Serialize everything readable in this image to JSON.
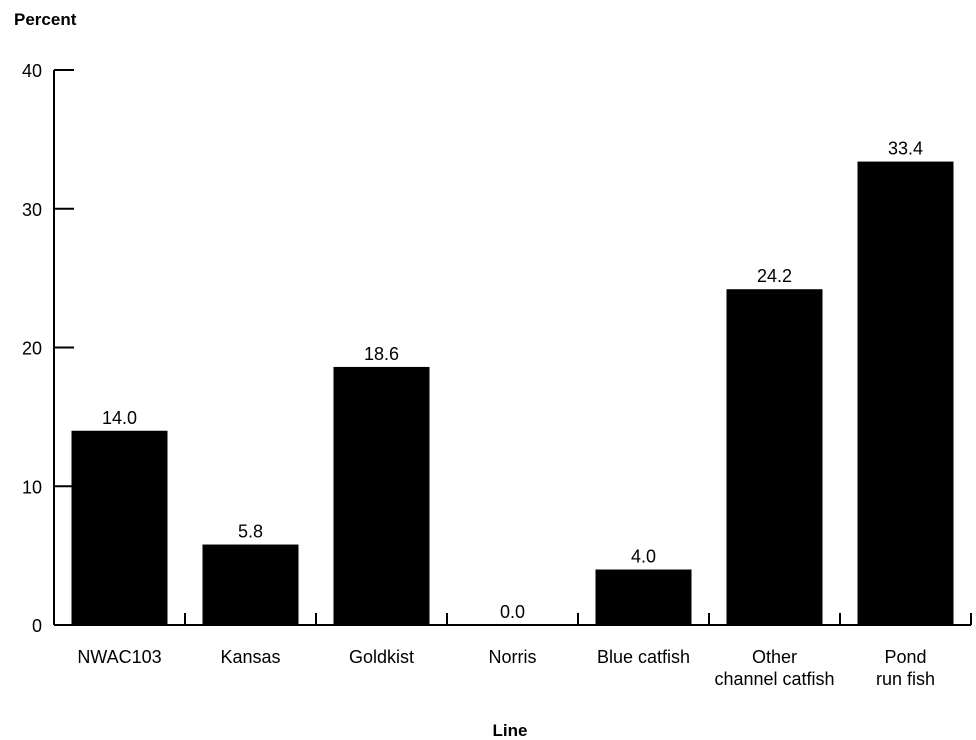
{
  "chart_data": {
    "type": "bar",
    "title": "",
    "ylabel": "Percent",
    "xlabel": "Line",
    "ylim": [
      0,
      40
    ],
    "yticks": [
      0,
      10,
      20,
      30,
      40
    ],
    "grid": false,
    "categories": [
      [
        "NWAC103"
      ],
      [
        "Kansas"
      ],
      [
        "Goldkist"
      ],
      [
        "Norris"
      ],
      [
        "Blue catfish"
      ],
      [
        "Other",
        "channel catfish"
      ],
      [
        "Pond",
        "run fish"
      ]
    ],
    "values": [
      14.0,
      5.8,
      18.6,
      0.0,
      4.0,
      24.2,
      33.4
    ],
    "data_labels": [
      "14.0",
      "5.8",
      "18.6",
      "0.0",
      "4.0",
      "24.2",
      "33.4"
    ],
    "bar_color": "#000000"
  }
}
